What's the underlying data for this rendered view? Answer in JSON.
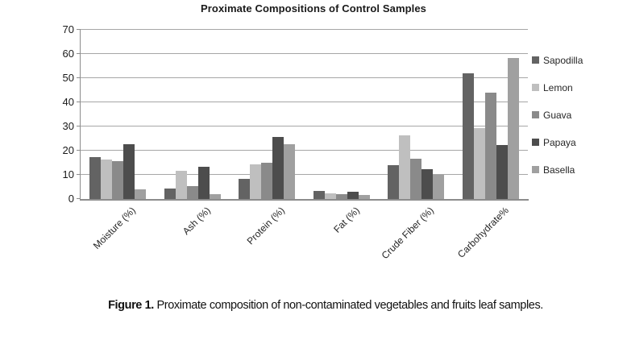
{
  "figure": {
    "title": "Proximate Compositions of Control Samples",
    "caption_label": "Figure 1.",
    "caption_text": " Proximate composition of non-contaminated vegetables and fruits leaf samples."
  },
  "chart_data": {
    "type": "bar",
    "title": "Proximate Compositions of Control Samples",
    "categories": [
      "Moisture (%)",
      "Ash (%)",
      "Protein (%)",
      "Fat (%)",
      "Crude Fiber (%)",
      "Carbohydrate%"
    ],
    "series": [
      {
        "name": "Sapodilla",
        "color": "#636363",
        "values": [
          17.2,
          4.4,
          8.5,
          3.2,
          14.0,
          52.0
        ]
      },
      {
        "name": "Lemon",
        "color": "#bfbfbf",
        "values": [
          16.4,
          11.6,
          14.3,
          2.3,
          26.2,
          29.5
        ]
      },
      {
        "name": "Guava",
        "color": "#8a8a8a",
        "values": [
          15.8,
          5.5,
          15.0,
          2.0,
          16.8,
          44.0
        ]
      },
      {
        "name": "Papaya",
        "color": "#4d4d4d",
        "values": [
          22.8,
          13.4,
          25.6,
          2.9,
          12.4,
          22.5
        ]
      },
      {
        "name": "Basella",
        "color": "#a0a0a0",
        "values": [
          4.1,
          1.9,
          22.7,
          1.8,
          9.9,
          58.5
        ]
      }
    ],
    "xlabel": "",
    "ylabel": "",
    "ylim": [
      0,
      70
    ],
    "ytick_step": 10,
    "grid": true,
    "legend_position": "right",
    "gridline_color": "#a6a6a6",
    "axis_color": "#8c8c8c"
  }
}
